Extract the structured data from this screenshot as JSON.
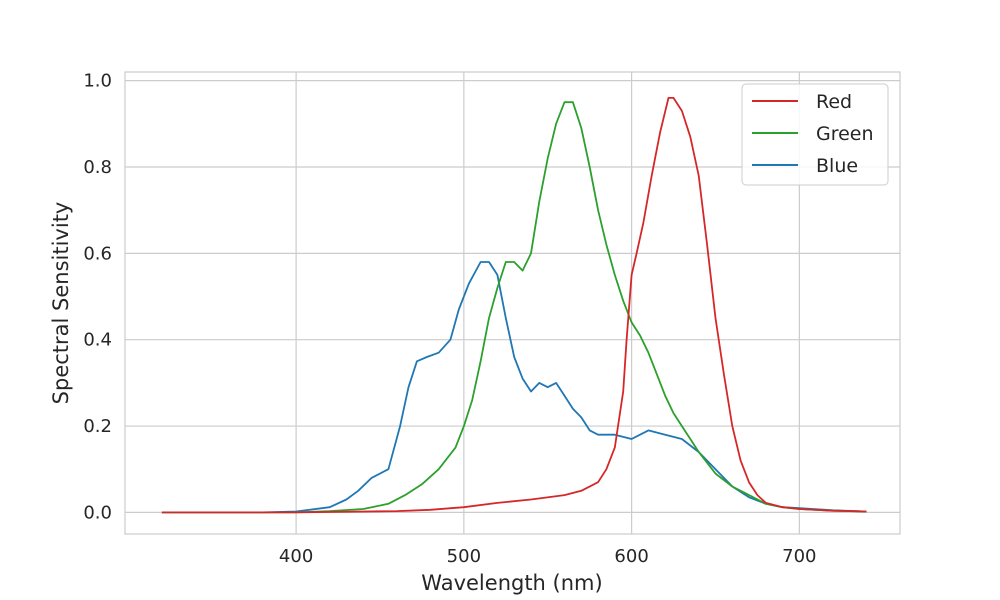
{
  "chart_data": {
    "type": "line",
    "title": "",
    "xlabel": "Wavelength (nm)",
    "ylabel": "Spectral Sensitivity",
    "xlim": [
      298,
      760
    ],
    "ylim": [
      -0.05,
      1.02
    ],
    "xticks": [
      400,
      500,
      600,
      700
    ],
    "xtick_labels": [
      "400",
      "500",
      "600",
      "700"
    ],
    "yticks": [
      0.0,
      0.2,
      0.4,
      0.6,
      0.8,
      1.0
    ],
    "ytick_labels": [
      "0.0",
      "0.2",
      "0.4",
      "0.6",
      "0.8",
      "1.0"
    ],
    "grid": true,
    "legend_position": "top-right",
    "series": [
      {
        "name": "Red",
        "color": "#d62728",
        "points": [
          [
            320,
            0
          ],
          [
            400,
            0
          ],
          [
            460,
            0.003
          ],
          [
            480,
            0.006
          ],
          [
            500,
            0.012
          ],
          [
            520,
            0.022
          ],
          [
            540,
            0.03
          ],
          [
            560,
            0.04
          ],
          [
            570,
            0.05
          ],
          [
            580,
            0.07
          ],
          [
            585,
            0.1
          ],
          [
            590,
            0.15
          ],
          [
            595,
            0.28
          ],
          [
            597,
            0.4
          ],
          [
            600,
            0.55
          ],
          [
            603,
            0.6
          ],
          [
            607,
            0.67
          ],
          [
            612,
            0.78
          ],
          [
            617,
            0.88
          ],
          [
            622,
            0.96
          ],
          [
            625,
            0.96
          ],
          [
            630,
            0.93
          ],
          [
            635,
            0.87
          ],
          [
            640,
            0.78
          ],
          [
            645,
            0.62
          ],
          [
            650,
            0.45
          ],
          [
            655,
            0.32
          ],
          [
            660,
            0.2
          ],
          [
            665,
            0.12
          ],
          [
            670,
            0.07
          ],
          [
            675,
            0.04
          ],
          [
            680,
            0.022
          ],
          [
            690,
            0.012
          ],
          [
            700,
            0.008
          ],
          [
            720,
            0.004
          ],
          [
            740,
            0.002
          ]
        ]
      },
      {
        "name": "Green",
        "color": "#2ca02c",
        "points": [
          [
            320,
            0
          ],
          [
            400,
            0
          ],
          [
            420,
            0.003
          ],
          [
            440,
            0.008
          ],
          [
            455,
            0.02
          ],
          [
            465,
            0.04
          ],
          [
            475,
            0.065
          ],
          [
            485,
            0.1
          ],
          [
            495,
            0.15
          ],
          [
            500,
            0.2
          ],
          [
            505,
            0.26
          ],
          [
            510,
            0.35
          ],
          [
            515,
            0.45
          ],
          [
            520,
            0.52
          ],
          [
            525,
            0.58
          ],
          [
            530,
            0.58
          ],
          [
            535,
            0.56
          ],
          [
            540,
            0.6
          ],
          [
            545,
            0.72
          ],
          [
            550,
            0.82
          ],
          [
            555,
            0.9
          ],
          [
            560,
            0.95
          ],
          [
            565,
            0.95
          ],
          [
            570,
            0.89
          ],
          [
            575,
            0.8
          ],
          [
            580,
            0.7
          ],
          [
            585,
            0.62
          ],
          [
            590,
            0.55
          ],
          [
            595,
            0.49
          ],
          [
            600,
            0.44
          ],
          [
            605,
            0.41
          ],
          [
            610,
            0.37
          ],
          [
            615,
            0.32
          ],
          [
            620,
            0.27
          ],
          [
            625,
            0.23
          ],
          [
            630,
            0.2
          ],
          [
            635,
            0.17
          ],
          [
            640,
            0.14
          ],
          [
            650,
            0.09
          ],
          [
            660,
            0.06
          ],
          [
            670,
            0.04
          ],
          [
            680,
            0.02
          ],
          [
            690,
            0.012
          ],
          [
            700,
            0.008
          ],
          [
            720,
            0.004
          ],
          [
            740,
            0.002
          ]
        ]
      },
      {
        "name": "Blue",
        "color": "#1f77b4",
        "points": [
          [
            320,
            0
          ],
          [
            380,
            0
          ],
          [
            400,
            0.002
          ],
          [
            420,
            0.012
          ],
          [
            430,
            0.03
          ],
          [
            437,
            0.05
          ],
          [
            445,
            0.08
          ],
          [
            455,
            0.1
          ],
          [
            462,
            0.2
          ],
          [
            467,
            0.29
          ],
          [
            472,
            0.35
          ],
          [
            478,
            0.36
          ],
          [
            485,
            0.37
          ],
          [
            492,
            0.4
          ],
          [
            497,
            0.47
          ],
          [
            503,
            0.53
          ],
          [
            510,
            0.58
          ],
          [
            515,
            0.58
          ],
          [
            520,
            0.55
          ],
          [
            525,
            0.45
          ],
          [
            530,
            0.36
          ],
          [
            535,
            0.31
          ],
          [
            540,
            0.28
          ],
          [
            545,
            0.3
          ],
          [
            550,
            0.29
          ],
          [
            555,
            0.3
          ],
          [
            560,
            0.27
          ],
          [
            565,
            0.24
          ],
          [
            570,
            0.22
          ],
          [
            575,
            0.19
          ],
          [
            580,
            0.18
          ],
          [
            590,
            0.18
          ],
          [
            600,
            0.17
          ],
          [
            610,
            0.19
          ],
          [
            620,
            0.18
          ],
          [
            630,
            0.17
          ],
          [
            640,
            0.14
          ],
          [
            650,
            0.1
          ],
          [
            660,
            0.06
          ],
          [
            670,
            0.035
          ],
          [
            680,
            0.02
          ],
          [
            690,
            0.012
          ],
          [
            700,
            0.01
          ],
          [
            720,
            0.005
          ],
          [
            740,
            0.002
          ]
        ]
      }
    ]
  }
}
